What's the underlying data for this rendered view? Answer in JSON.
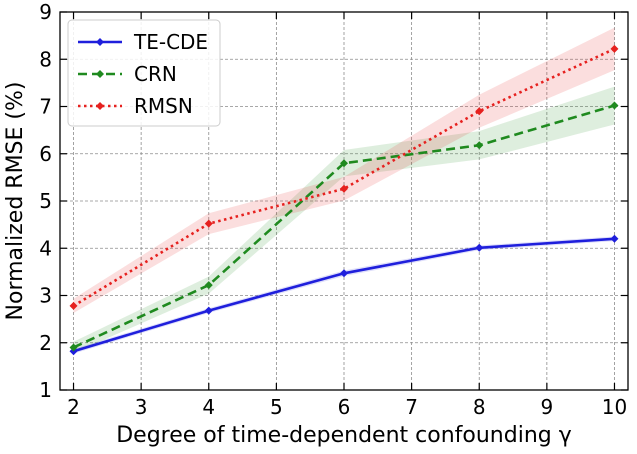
{
  "chart_data": {
    "type": "line",
    "title": "",
    "xlabel": "Degree of time-dependent confounding γ",
    "ylabel": "Normalized RMSE (%)",
    "xlim": [
      1.8,
      10.2
    ],
    "ylim": [
      1,
      9
    ],
    "xticks": [
      2,
      3,
      4,
      5,
      6,
      7,
      8,
      9,
      10
    ],
    "yticks": [
      1,
      2,
      3,
      4,
      5,
      6,
      7,
      8,
      9
    ],
    "grid": true,
    "legend_position": "top-left",
    "series": [
      {
        "name": "TE-CDE",
        "color": "#1f1fdc",
        "line_style": "solid",
        "x": [
          2,
          4,
          6,
          8,
          10
        ],
        "y": [
          1.82,
          2.68,
          3.47,
          4.01,
          4.2
        ],
        "band": [
          0.05,
          0.05,
          0.06,
          0.05,
          0.05
        ]
      },
      {
        "name": "CRN",
        "color": "#1f8a1f",
        "line_style": "dashed",
        "x": [
          2,
          4,
          6,
          8,
          10
        ],
        "y": [
          1.9,
          3.22,
          5.8,
          6.18,
          7.02
        ],
        "band": [
          0.12,
          0.18,
          0.28,
          0.3,
          0.4
        ]
      },
      {
        "name": "RMSN",
        "color": "#e6211f",
        "line_style": "dotted",
        "x": [
          2,
          4,
          6,
          8,
          10
        ],
        "y": [
          2.78,
          4.52,
          5.26,
          6.9,
          8.22
        ],
        "band": [
          0.15,
          0.22,
          0.25,
          0.35,
          0.45
        ]
      }
    ]
  }
}
